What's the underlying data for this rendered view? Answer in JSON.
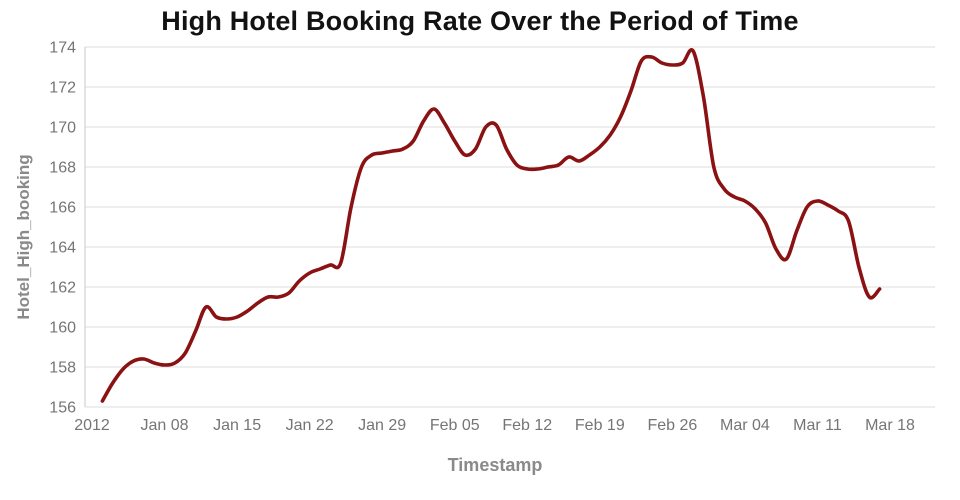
{
  "chart_data": {
    "type": "line",
    "title": "High Hotel Booking Rate Over the Period of Time",
    "xlabel": "Timestamp",
    "ylabel": "Hotel_High_booking",
    "legend": "none",
    "grid": "horizontal",
    "line_color": "#8b1212",
    "grid_color": "#dcdcdc",
    "axis_color": "#c8c8c8",
    "tick_label_color": "#757575",
    "ylim": [
      156,
      174
    ],
    "y_ticks": [
      156,
      158,
      160,
      162,
      164,
      166,
      168,
      170,
      172,
      174
    ],
    "x_domain_days": [
      0,
      77
    ],
    "x_ticks": [
      {
        "day": 0,
        "label": "2012"
      },
      {
        "day": 7,
        "label": "Jan 08"
      },
      {
        "day": 14,
        "label": "Jan 15"
      },
      {
        "day": 21,
        "label": "Jan 22"
      },
      {
        "day": 28,
        "label": "Jan 29"
      },
      {
        "day": 35,
        "label": "Feb 05"
      },
      {
        "day": 42,
        "label": "Feb 12"
      },
      {
        "day": 49,
        "label": "Feb 19"
      },
      {
        "day": 56,
        "label": "Feb 26"
      },
      {
        "day": 63,
        "label": "Mar 04"
      },
      {
        "day": 70,
        "label": "Mar 11"
      },
      {
        "day": 77,
        "label": "Mar 18"
      }
    ],
    "series": [
      {
        "name": "Hotel_High_booking",
        "x_start_day": 1,
        "x_step_days": 1,
        "values": [
          156.3,
          157.2,
          157.9,
          158.3,
          158.4,
          158.2,
          158.1,
          158.2,
          158.7,
          159.8,
          161.0,
          160.5,
          160.4,
          160.5,
          160.8,
          161.2,
          161.5,
          161.5,
          161.7,
          162.3,
          162.7,
          162.9,
          163.1,
          163.2,
          166.0,
          168.0,
          168.6,
          168.7,
          168.8,
          168.9,
          169.3,
          170.3,
          170.9,
          170.2,
          169.3,
          168.6,
          168.9,
          170.0,
          170.1,
          168.9,
          168.1,
          167.9,
          167.9,
          168.0,
          168.1,
          168.5,
          168.3,
          168.6,
          169.0,
          169.6,
          170.5,
          171.8,
          173.3,
          173.5,
          173.2,
          173.1,
          173.2,
          173.8,
          171.5,
          168.0,
          166.9,
          166.5,
          166.3,
          165.9,
          165.2,
          163.9,
          163.4,
          164.8,
          166.0,
          166.3,
          166.1,
          165.8,
          165.3,
          163.0,
          161.5,
          161.9
        ]
      }
    ]
  }
}
